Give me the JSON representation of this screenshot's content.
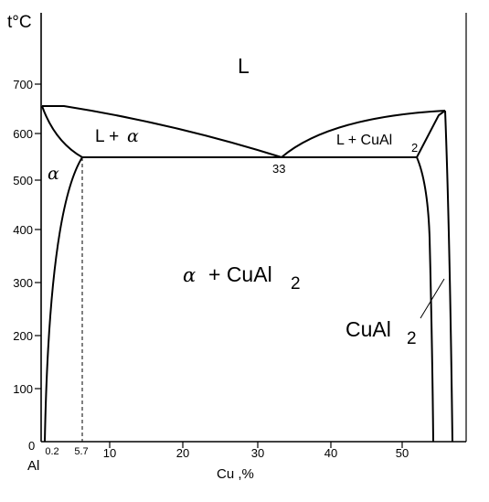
{
  "axes": {
    "y_label": "t°C",
    "x_label": "Cu ,%",
    "origin_label": "0",
    "element_label": "Al",
    "y_ticks": [
      "100",
      "200",
      "300",
      "400",
      "500",
      "600",
      "700"
    ],
    "x_ticks": [
      "0.2",
      "5.7",
      "10",
      "20",
      "30",
      "40",
      "50"
    ]
  },
  "phases": {
    "liquid": "L",
    "liquid_alpha": "L +",
    "alpha_symbol": "α",
    "liquid_cual2": "L + CuAl",
    "alpha_cual2_base": "+ CuAl",
    "cual2": "CuAl",
    "subscript": "2"
  },
  "points": {
    "eutectic": "33"
  }
}
